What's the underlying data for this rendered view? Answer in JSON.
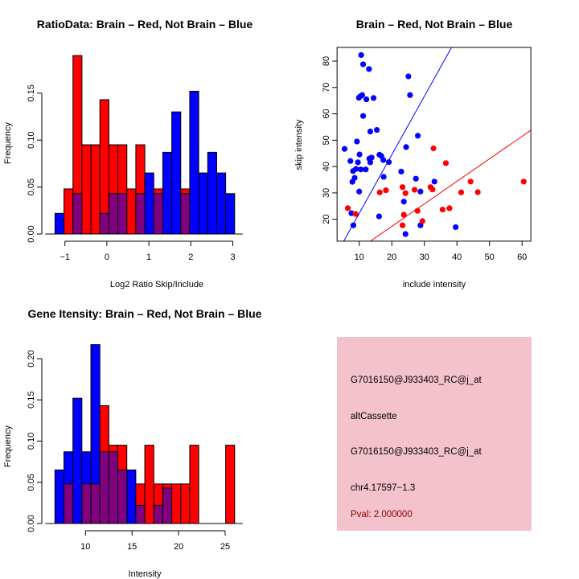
{
  "colors": {
    "red": "#ff0000",
    "blue": "#0000ff",
    "overlap": "#800080",
    "panel": "#f4c2cc",
    "pval": "#8b0000"
  },
  "chart_data": [
    {
      "type": "bar",
      "title": "RatioData: Brain – Red, Not Brain – Blue",
      "xlabel": "Log2 Ratio Skip/Include",
      "ylabel": "Frequency",
      "bin_start": -1.236,
      "bin_width": 0.214,
      "xticks": [
        -1,
        0,
        1,
        2,
        3
      ],
      "xtick_labels": [
        "−1",
        "0",
        "1",
        "2",
        "3"
      ],
      "yticks": [
        0,
        0.05,
        0.1,
        0.15
      ],
      "ytick_labels": [
        "0.00",
        "0.05",
        "0.10",
        "0.15"
      ],
      "series": [
        {
          "name": "Brain",
          "color": "red",
          "values": [
            0,
            0.048,
            0.19,
            0.095,
            0.095,
            0.143,
            0.095,
            0.095,
            0.048,
            0.095,
            0,
            0.048,
            0,
            0,
            0.048,
            0,
            0,
            0,
            0,
            0
          ]
        },
        {
          "name": "Not Brain",
          "color": "blue",
          "values": [
            0.022,
            0,
            0.043,
            0,
            0,
            0.022,
            0.043,
            0.043,
            0,
            0.043,
            0.065,
            0.043,
            0.087,
            0.13,
            0.043,
            0.152,
            0.065,
            0.087,
            0.065,
            0.043
          ]
        }
      ]
    },
    {
      "type": "scatter",
      "title": "Brain – Red, Not Brain – Blue",
      "xlabel": "include intensity",
      "ylabel": "skip intensity",
      "xlim": [
        3.2,
        62.7
      ],
      "ylim": [
        11.7,
        85.2
      ],
      "xticks": [
        10,
        20,
        30,
        40,
        50,
        60
      ],
      "yticks": [
        20,
        30,
        40,
        50,
        60,
        70,
        80
      ],
      "series": [
        {
          "name": "Not Brain",
          "color": "blue",
          "x": [
            10.6,
            11.2,
            13.0,
            25.1,
            25.6,
            10.9,
            10.3,
            9.9,
            12.2,
            14.4,
            11.2,
            15.4,
            13.4,
            28.0,
            9.3,
            5.5,
            24.4,
            10.1,
            16.2,
            16.8,
            13.1,
            13.8,
            17.4,
            7.3,
            9.6,
            13.4,
            19.1,
            8.1,
            9.0,
            10.5,
            12.0,
            22.9,
            8.6,
            17.5,
            7.9,
            27.4,
            33.1,
            10.0,
            28.8,
            23.7,
            7.6,
            16.1,
            8.2,
            28.8,
            39.6,
            24.2
          ],
          "y": [
            82.3,
            78.8,
            77.0,
            74.2,
            67.1,
            67.1,
            66.6,
            66.1,
            65.5,
            66.0,
            59.2,
            53.9,
            53.3,
            51.7,
            49.5,
            46.7,
            47.4,
            44.6,
            44.5,
            44.0,
            43.0,
            43.4,
            42.5,
            42.1,
            41.6,
            41.6,
            41.7,
            38.3,
            39.1,
            38.9,
            38.9,
            38.1,
            35.7,
            36.1,
            34.2,
            35.4,
            34.3,
            30.5,
            30.5,
            26.7,
            22.3,
            21.1,
            17.7,
            17.7,
            17.0,
            14.4
          ]
        },
        {
          "name": "Brain",
          "color": "red",
          "x": [
            6.5,
            8.9,
            16.3,
            18.2,
            23.3,
            24.2,
            23.7,
            23.3,
            27.0,
            27.9,
            29.4,
            31.9,
            32.5,
            32.8,
            36.6,
            35.6,
            37.7,
            41.3,
            44.2,
            46.4,
            60.5
          ],
          "y": [
            24.2,
            22.0,
            30.2,
            31.0,
            32.2,
            29.9,
            21.7,
            17.7,
            31.2,
            23.2,
            19.3,
            32.2,
            31.3,
            46.9,
            41.3,
            23.7,
            24.2,
            30.2,
            34.3,
            30.3,
            34.3
          ]
        }
      ],
      "lines": [
        {
          "color": "blue",
          "slope": 2.22,
          "intercept": 0.06
        },
        {
          "color": "red",
          "slope": 0.854,
          "intercept": 0.24
        }
      ]
    },
    {
      "type": "bar",
      "title": "Gene Itensity: Brain – Red, Not Brain – Blue",
      "xlabel": "Intensity",
      "ylabel": "Frequency",
      "bin_start": 6.72,
      "bin_width": 0.965,
      "xticks": [
        10,
        15,
        20,
        25
      ],
      "xtick_labels": [
        "10",
        "15",
        "20",
        "25"
      ],
      "yticks": [
        0,
        0.05,
        0.1,
        0.15,
        0.2
      ],
      "ytick_labels": [
        "0.00",
        "0.05",
        "0.10",
        "0.15",
        "0.20"
      ],
      "series": [
        {
          "name": "Brain",
          "color": "red",
          "values": [
            0,
            0.048,
            0,
            0.048,
            0.048,
            0.143,
            0.095,
            0.095,
            0,
            0.048,
            0.095,
            0.048,
            0.048,
            0.048,
            0.048,
            0.095,
            0,
            0,
            0,
            0.095
          ]
        },
        {
          "name": "Not Brain",
          "color": "blue",
          "values": [
            0.065,
            0.087,
            0.152,
            0.087,
            0.217,
            0.087,
            0.087,
            0.065,
            0.065,
            0.022,
            0,
            0.022,
            0.043,
            0,
            0,
            0,
            0,
            0,
            0,
            0
          ]
        }
      ]
    }
  ],
  "info_panel": {
    "lines": [
      "G7016150@J933403_RC@j_at",
      "altCassette",
      "G7016150@J933403_RC@j_at",
      "chr4.17597−1.3"
    ],
    "pval": "Pval: 2.000000"
  }
}
